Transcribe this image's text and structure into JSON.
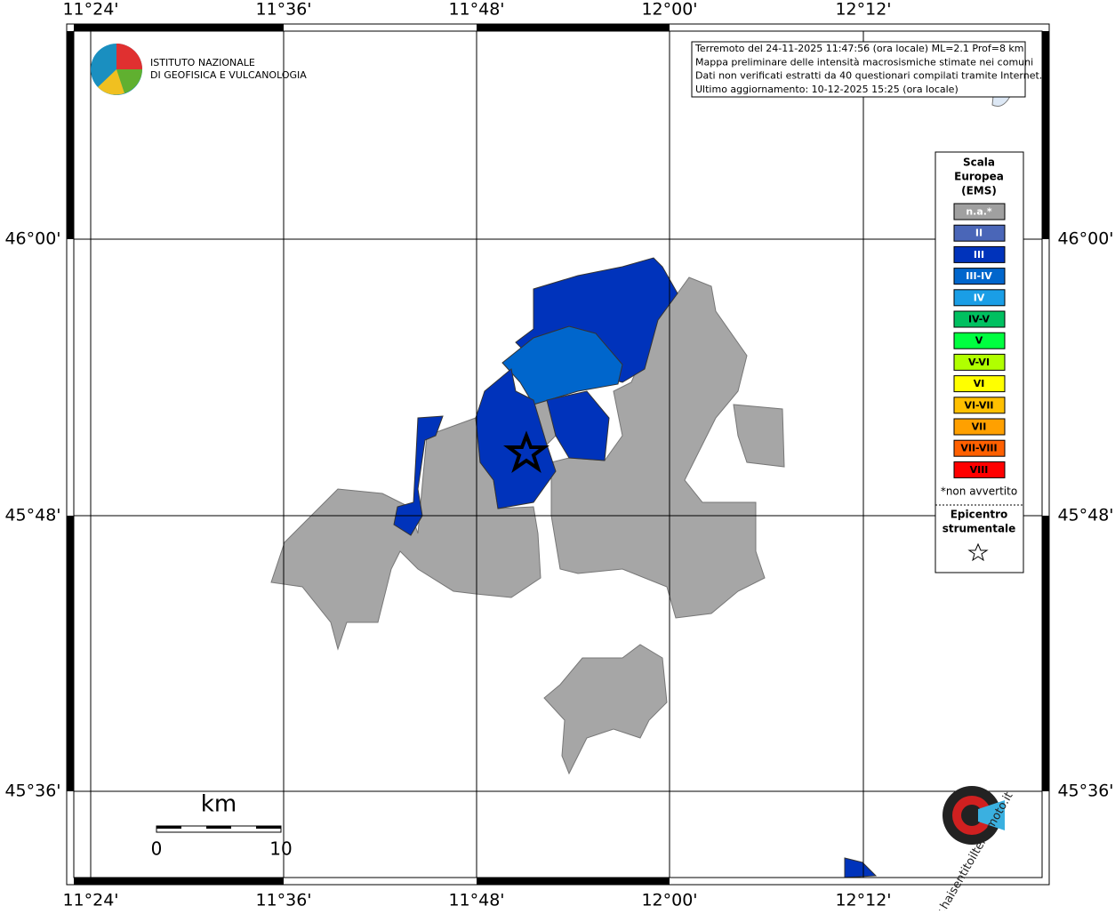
{
  "map": {
    "lon_labels": [
      "11°24'",
      "11°36'",
      "11°48'",
      "12°00'",
      "12°12'"
    ],
    "lat_labels": [
      "46°00'",
      "45°48'",
      "45°36'"
    ],
    "info": [
      "Terremoto del 24-11-2025 11:47:56 (ora locale) ML=2.1 Prof=8 km",
      "Mappa preliminare delle intensità macrosismiche stimate nei comuni",
      "Dati non verificati estratti da 40 questionari compilati tramite Internet.",
      "Ultimo aggiornamento: 10-12-2025 15:25 (ora locale)"
    ],
    "logo": [
      "ISTITUTO NAZIONALE",
      "DI GEOFISICA E VULCANOLOGIA"
    ],
    "legend": {
      "title": [
        "Scala",
        "Europea",
        "(EMS)"
      ],
      "items": [
        {
          "label": "n.a.*",
          "color": "#a0a0a0"
        },
        {
          "label": "II",
          "color": "#4a66b8"
        },
        {
          "label": "III",
          "color": "#0033bb"
        },
        {
          "label": "III-IV",
          "color": "#0066cc"
        },
        {
          "label": "IV",
          "color": "#1a9ee6"
        },
        {
          "label": "IV-V",
          "color": "#00c060"
        },
        {
          "label": "V",
          "color": "#00ff40"
        },
        {
          "label": "V-VI",
          "color": "#b0ff00"
        },
        {
          "label": "VI",
          "color": "#ffff00"
        },
        {
          "label": "VI-VII",
          "color": "#ffc000"
        },
        {
          "label": "VII",
          "color": "#ffa000"
        },
        {
          "label": "VII-VIII",
          "color": "#ff6000"
        },
        {
          "label": "VIII",
          "color": "#ff0000"
        }
      ],
      "note": "*non avvertito",
      "epicenter": [
        "Epicentro",
        "strumentale"
      ]
    },
    "scale": {
      "unit": "km",
      "ticks": [
        "0",
        "10"
      ]
    },
    "watermark": "www.haisentitoilterremoto.it"
  }
}
